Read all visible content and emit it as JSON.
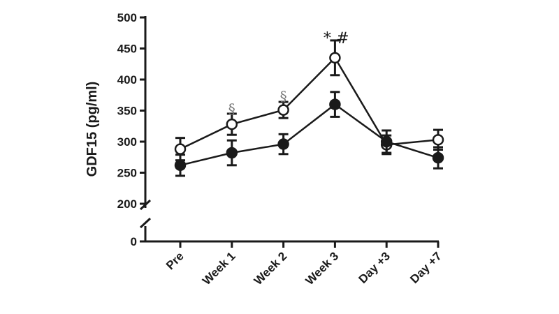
{
  "chart_data": {
    "type": "line",
    "title": "",
    "xlabel": "",
    "ylabel": "GDF15 (pg/ml)",
    "categories": [
      "Pre",
      "Week 1",
      "Week 2",
      "Week 3",
      "Day +3",
      "Day +7"
    ],
    "y_ticks": [
      "0",
      "200",
      "250",
      "300",
      "350",
      "400",
      "450",
      "500"
    ],
    "ylim": [
      200,
      500
    ],
    "axis_break": true,
    "grid": false,
    "legend": "none",
    "series": [
      {
        "marker": "open-circle",
        "values": [
          288,
          328,
          351,
          435,
          295,
          303
        ],
        "error": [
          18,
          17,
          13,
          28,
          15,
          16
        ]
      },
      {
        "marker": "filled-circle",
        "values": [
          262,
          282,
          296,
          360,
          300,
          274
        ],
        "error": [
          17,
          20,
          16,
          20,
          18,
          17
        ]
      }
    ],
    "annotations": [
      {
        "category": "Week 1",
        "text": "§",
        "above": 345
      },
      {
        "category": "Week 2",
        "text": "§",
        "above": 365
      },
      {
        "category": "Week 3",
        "text": "*",
        "above": 465
      },
      {
        "category": "Week 3",
        "text": "#",
        "above": 465
      }
    ],
    "colors": {
      "ink": "#1a1a1a",
      "annotation_gray": "#777777",
      "background": "#ffffff"
    }
  }
}
